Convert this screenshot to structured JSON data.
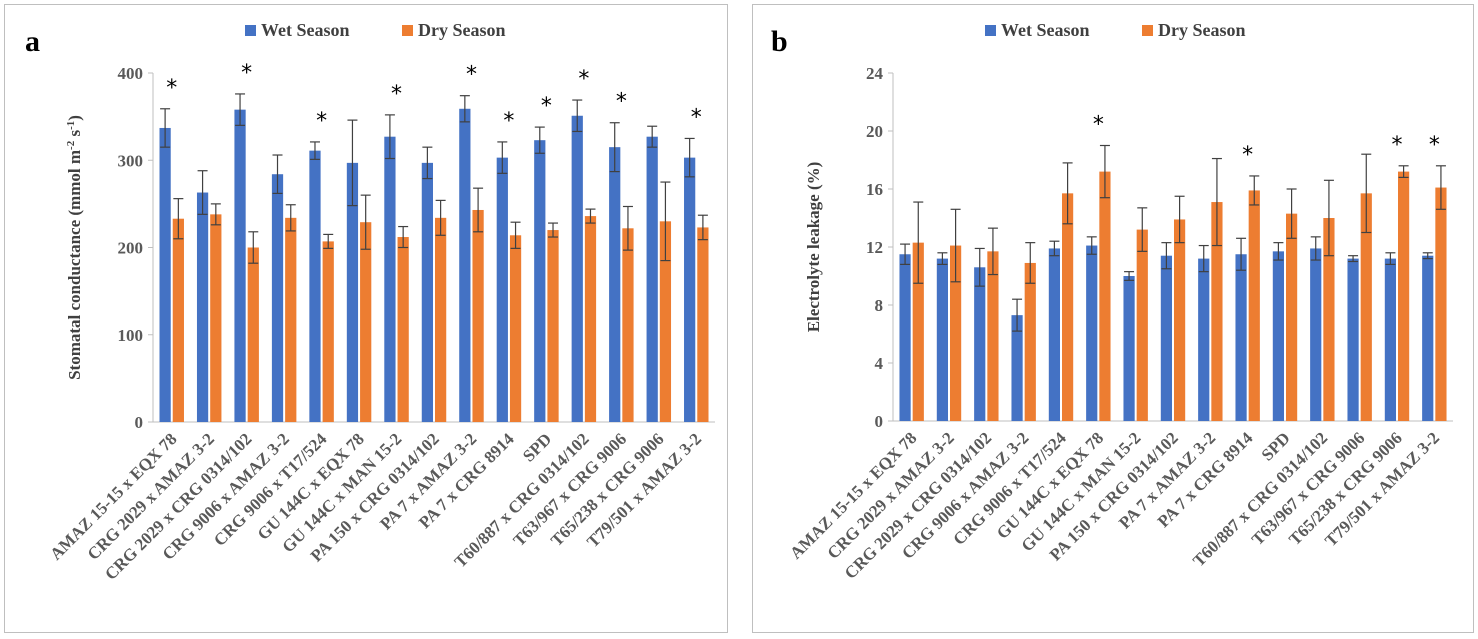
{
  "colors": {
    "wet": "#4472C4",
    "dry": "#ED7D31",
    "axis": "#bfbfbf",
    "error": "#404040"
  },
  "chart_data": [
    {
      "type": "bar",
      "panel_label": "a",
      "ylabel_parts": [
        "Stomatal conductance (mmol m",
        "-2",
        " s",
        "-1",
        ")"
      ],
      "ylim": [
        0,
        400
      ],
      "yticks": [
        0,
        100,
        200,
        300,
        400
      ],
      "grid": false,
      "legend_position": "top",
      "categories": [
        "AMAZ 15-15 x EQX 78",
        "CRG 2029 x AMAZ 3-2",
        "CRG 2029 x CRG 0314/102",
        "CRG 9006 x AMAZ 3-2",
        "CRG 9006 x T17/524",
        "GU 144C x EQX 78",
        "GU 144C x MAN 15-2",
        "PA 150 x CRG 0314/102",
        "PA 7 x AMAZ 3-2",
        "PA 7 x CRG 8914",
        "SPD",
        "T60/887 x CRG 0314/102",
        "T63/967 x CRG 9006",
        "T65/238 x CRG 9006",
        "T79/501 x AMAZ 3-2"
      ],
      "series": [
        {
          "name": "Wet Season",
          "values": [
            337,
            263,
            358,
            284,
            311,
            297,
            327,
            297,
            359,
            303,
            323,
            351,
            315,
            327,
            303
          ],
          "errors": [
            22,
            25,
            18,
            22,
            10,
            49,
            25,
            18,
            15,
            18,
            15,
            18,
            28,
            12,
            22
          ]
        },
        {
          "name": "Dry Season",
          "values": [
            233,
            238,
            200,
            234,
            207,
            229,
            212,
            234,
            243,
            214,
            220,
            236,
            222,
            230,
            223
          ],
          "errors": [
            23,
            12,
            18,
            15,
            8,
            31,
            12,
            20,
            25,
            15,
            8,
            8,
            25,
            45,
            14
          ]
        }
      ],
      "significance": [
        "*",
        "",
        "*",
        "",
        "*",
        "",
        "*",
        "",
        "*",
        "*",
        "*",
        "*",
        "*",
        "",
        "*"
      ]
    },
    {
      "type": "bar",
      "panel_label": "b",
      "ylabel_parts": [
        "Electrolyte leakage (%)"
      ],
      "ylim": [
        0,
        24
      ],
      "yticks": [
        0,
        4,
        8,
        12,
        16,
        20,
        24
      ],
      "grid": false,
      "legend_position": "top",
      "categories": [
        "AMAZ 15-15 x EQX 78",
        "CRG 2029 x AMAZ 3-2",
        "CRG 2029 x CRG 0314/102",
        "CRG 9006 x AMAZ 3-2",
        "CRG 9006 x T17/524",
        "GU 144C x EQX 78",
        "GU 144C x MAN 15-2",
        "PA 150 x CRG 0314/102",
        "PA 7 x AMAZ 3-2",
        "PA 7 x CRG 8914",
        "SPD",
        "T60/887 x CRG 0314/102",
        "T63/967 x CRG 9006",
        "T65/238 x CRG 9006",
        "T79/501 x AMAZ 3-2"
      ],
      "series": [
        {
          "name": "Wet Season",
          "values": [
            11.5,
            11.2,
            10.6,
            7.3,
            11.9,
            12.1,
            10.0,
            11.4,
            11.2,
            11.5,
            11.7,
            11.9,
            11.2,
            11.2,
            11.4
          ],
          "errors": [
            0.7,
            0.4,
            1.3,
            1.1,
            0.5,
            0.6,
            0.3,
            0.9,
            0.9,
            1.1,
            0.6,
            0.8,
            0.2,
            0.4,
            0.2
          ]
        },
        {
          "name": "Dry Season",
          "values": [
            12.3,
            12.1,
            11.7,
            10.9,
            15.7,
            17.2,
            13.2,
            13.9,
            15.1,
            15.9,
            14.3,
            14.0,
            15.7,
            17.2,
            16.1
          ],
          "errors": [
            2.8,
            2.5,
            1.6,
            1.4,
            2.1,
            1.8,
            1.5,
            1.6,
            3.0,
            1.0,
            1.7,
            2.6,
            2.7,
            0.4,
            1.5
          ]
        }
      ],
      "significance": [
        "",
        "",
        "",
        "",
        "",
        "*",
        "",
        "",
        "",
        "*",
        "",
        "",
        "",
        "*",
        "*"
      ]
    }
  ]
}
